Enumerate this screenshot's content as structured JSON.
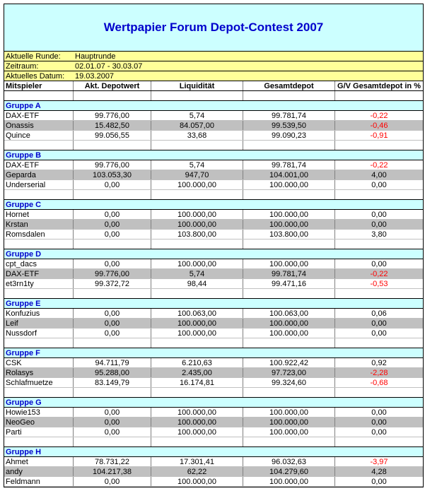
{
  "title": "Wertpapier Forum Depot-Contest 2007",
  "info": [
    {
      "label": "Aktuelle Runde:",
      "value": "Hauptrunde"
    },
    {
      "label": "Zeitraum:",
      "value": "02.01.07 - 30.03.07"
    },
    {
      "label": "Aktuelles Datum:",
      "value": "19.03.2007"
    }
  ],
  "columns": [
    "Mitspieler",
    "Akt. Depotwert",
    "Liquidität",
    "Gesamtdepot",
    "G/V Gesamtdepot in %"
  ],
  "groups": [
    {
      "name": "Gruppe A",
      "rows": [
        [
          "DAX-ETF",
          "99.776,00",
          "5,74",
          "99.781,74",
          "-0,22"
        ],
        [
          "Onassis",
          "15.482,50",
          "84.057,00",
          "99.539,50",
          "-0,46"
        ],
        [
          "Quince",
          "99.056,55",
          "33,68",
          "99.090,23",
          "-0,91"
        ]
      ]
    },
    {
      "name": "Gruppe B",
      "rows": [
        [
          "DAX-ETF",
          "99.776,00",
          "5,74",
          "99.781,74",
          "-0,22"
        ],
        [
          "Geparda",
          "103.053,30",
          "947,70",
          "104.001,00",
          "4,00"
        ],
        [
          "Underserial",
          "0,00",
          "100.000,00",
          "100.000,00",
          "0,00"
        ]
      ]
    },
    {
      "name": "Gruppe C",
      "rows": [
        [
          "Hornet",
          "0,00",
          "100.000,00",
          "100.000,00",
          "0,00"
        ],
        [
          "Krstan",
          "0,00",
          "100.000,00",
          "100.000,00",
          "0,00"
        ],
        [
          "Romsdalen",
          "0,00",
          "103.800,00",
          "103.800,00",
          "3,80"
        ]
      ]
    },
    {
      "name": "Gruppe D",
      "rows": [
        [
          "cpt_dacs",
          "0,00",
          "100.000,00",
          "100.000,00",
          "0,00"
        ],
        [
          "DAX-ETF",
          "99.776,00",
          "5,74",
          "99.781,74",
          "-0,22"
        ],
        [
          "et3rn1ty",
          "99.372,72",
          "98,44",
          "99.471,16",
          "-0,53"
        ]
      ]
    },
    {
      "name": "Gruppe E",
      "rows": [
        [
          "Konfuzius",
          "0,00",
          "100.063,00",
          "100.063,00",
          "0,06"
        ],
        [
          "Leif",
          "0,00",
          "100.000,00",
          "100.000,00",
          "0,00"
        ],
        [
          "Nussdorf",
          "0,00",
          "100.000,00",
          "100.000,00",
          "0,00"
        ]
      ]
    },
    {
      "name": "Gruppe F",
      "rows": [
        [
          "CSK",
          "94.711,79",
          "6.210,63",
          "100.922,42",
          "0,92"
        ],
        [
          "Rolasys",
          "95.288,00",
          "2.435,00",
          "97.723,00",
          "-2,28"
        ],
        [
          "Schlafmuetze",
          "83.149,79",
          "16.174,81",
          "99.324,60",
          "-0,68"
        ]
      ]
    },
    {
      "name": "Gruppe G",
      "rows": [
        [
          "Howie153",
          "0,00",
          "100.000,00",
          "100.000,00",
          "0,00"
        ],
        [
          "NeoGeo",
          "0,00",
          "100.000,00",
          "100.000,00",
          "0,00"
        ],
        [
          "Parti",
          "0,00",
          "100.000,00",
          "100.000,00",
          "0,00"
        ]
      ]
    },
    {
      "name": "Gruppe H",
      "rows": [
        [
          "Ahmet",
          "78.731,22",
          "17.301,41",
          "96.032,63",
          "-3,97"
        ],
        [
          "andy",
          "104.217,38",
          "62,22",
          "104.279,60",
          "4,28"
        ],
        [
          "Feldmann",
          "0,00",
          "100.000,00",
          "100.000,00",
          "0,00"
        ]
      ]
    }
  ]
}
